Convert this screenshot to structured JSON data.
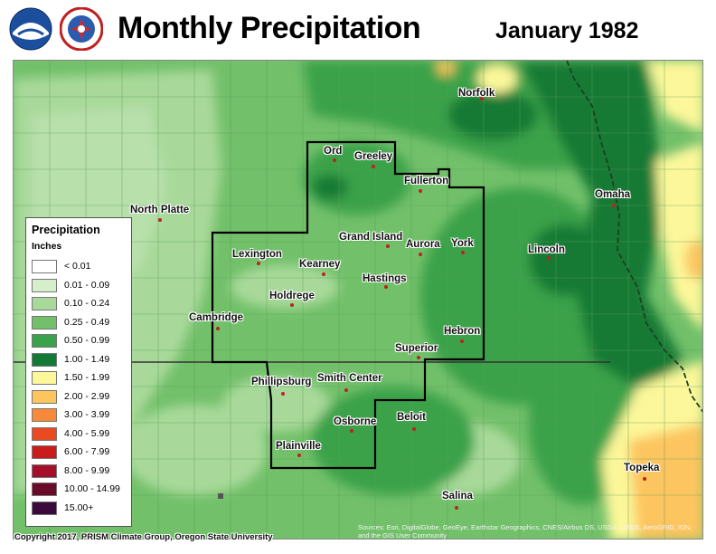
{
  "header": {
    "title": "Monthly Precipitation",
    "date": "January 1982",
    "logos": [
      "noaa-logo",
      "national-weather-service-logo"
    ]
  },
  "colors": {
    "lt0_01": "#ffffff",
    "b0_01_0_09": "#d6efcb",
    "b0_10_0_24": "#a8d99a",
    "b0_25_0_49": "#72c06a",
    "b0_50_0_99": "#3aa24a",
    "b1_00_1_49": "#127a34",
    "b1_50_1_99": "#fcf79a",
    "b2_00_2_99": "#fdc55e",
    "b3_00_3_99": "#f78a3a",
    "b4_00_5_99": "#ea4a22",
    "b6_00_7_99": "#c91c1c",
    "b8_00_9_99": "#a50e2a",
    "b10_00_14_99": "#6b0b2a",
    "b15_00_plus": "#3a0a3d"
  },
  "legend": {
    "title": "Precipitation",
    "units": "Inches",
    "items": [
      {
        "label": "< 0.01",
        "color": "#ffffff"
      },
      {
        "label": "0.01 - 0.09",
        "color": "#d6efcb"
      },
      {
        "label": "0.10 - 0.24",
        "color": "#a8d99a"
      },
      {
        "label": "0.25 - 0.49",
        "color": "#72c06a"
      },
      {
        "label": "0.50 - 0.99",
        "color": "#3aa24a"
      },
      {
        "label": "1.00 - 1.49",
        "color": "#127a34"
      },
      {
        "label": "1.50 - 1.99",
        "color": "#fcf79a"
      },
      {
        "label": "2.00 - 2.99",
        "color": "#fdc55e"
      },
      {
        "label": "3.00 - 3.99",
        "color": "#f78a3a"
      },
      {
        "label": "4.00 - 5.99",
        "color": "#ea4a22"
      },
      {
        "label": "6.00 - 7.99",
        "color": "#c91c1c"
      },
      {
        "label": "8.00 - 9.99",
        "color": "#a50e2a"
      },
      {
        "label": "10.00 - 14.99",
        "color": "#6b0b2a"
      },
      {
        "label": "15.00+",
        "color": "#3a0a3d"
      }
    ]
  },
  "cities": {
    "norfolk": "Norfolk",
    "ord": "Ord",
    "greeley": "Greeley",
    "fullerton": "Fullerton",
    "north_platte": "North Platte",
    "omaha": "Omaha",
    "grand_island": "Grand Island",
    "aurora": "Aurora",
    "york": "York",
    "lincoln": "Lincoln",
    "lexington": "Lexington",
    "kearney": "Kearney",
    "hastings": "Hastings",
    "holdrege": "Holdrege",
    "cambridge": "Cambridge",
    "hebron": "Hebron",
    "superior": "Superior",
    "phillipsburg": "Phillipsburg",
    "smith_center": "Smith Center",
    "beloit": "Beloit",
    "osborne": "Osborne",
    "plainville": "Plainville",
    "topeka": "Topeka",
    "salina": "Salina"
  },
  "footer": {
    "copyright": "Copyright 2017, PRISM Climate Group, Oregon State University",
    "credits": "Sources: Esri, DigitalGlobe, GeoEye, Earthstar Geographics, CNES/Airbus DS, USDA, USGS, AeroGRID, IGN, and the GIS User Community"
  }
}
